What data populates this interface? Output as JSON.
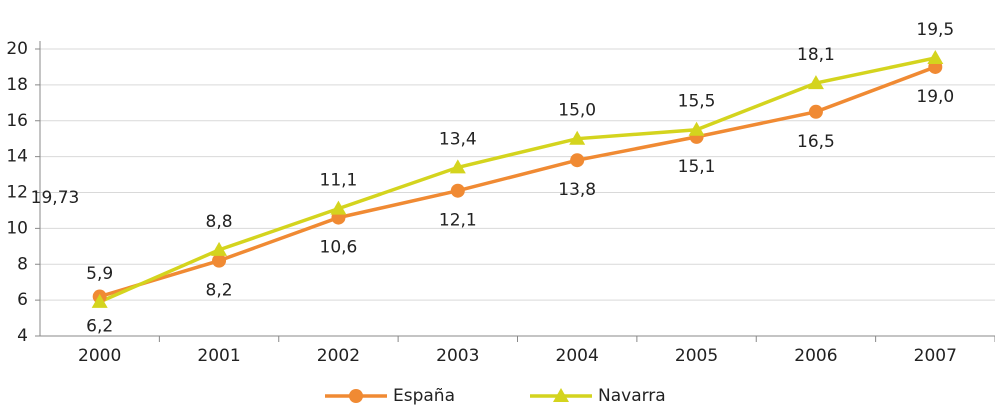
{
  "chart_data": {
    "type": "line",
    "categories": [
      "2000",
      "2001",
      "2002",
      "2003",
      "2004",
      "2005",
      "2006",
      "2007"
    ],
    "series": [
      {
        "name": "España",
        "color": "#f08a33",
        "marker": "circle",
        "values": [
          6.2,
          8.2,
          10.6,
          12.1,
          13.8,
          15.1,
          16.5,
          19.0
        ],
        "value_labels": [
          "6,2",
          "8,2",
          "10,6",
          "12,1",
          "13,8",
          "15,1",
          "16,5",
          "19,0"
        ]
      },
      {
        "name": "Navarra",
        "color": "#d4d41e",
        "marker": "triangle",
        "values": [
          5.9,
          8.8,
          11.1,
          13.4,
          15.0,
          15.5,
          18.1,
          19.5
        ],
        "value_labels": [
          "5,9",
          "8,8",
          "11,1",
          "13,4",
          "15,0",
          "15,5",
          "18,1",
          "19,5"
        ]
      }
    ],
    "annotations": [
      "19,73"
    ],
    "ylim": [
      4,
      20
    ],
    "yticks": [
      4,
      6,
      8,
      10,
      12,
      14,
      16,
      18,
      20
    ],
    "grid": true
  }
}
